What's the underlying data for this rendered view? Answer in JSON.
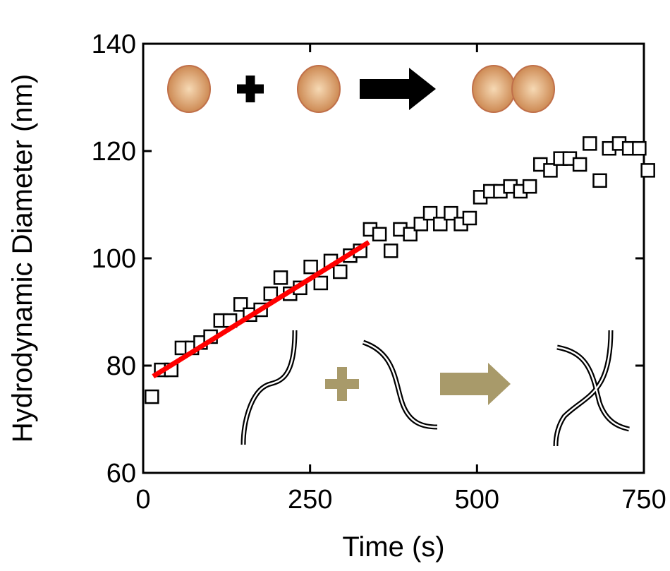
{
  "chart_data": {
    "type": "scatter",
    "x_label": "Time (s)",
    "y_label": "Hydrodynamic Diameter (nm)",
    "xlim": [
      0,
      750
    ],
    "ylim": [
      60,
      140
    ],
    "xticks": [
      0,
      250,
      500,
      750
    ],
    "yticks": [
      60,
      80,
      100,
      120,
      140
    ],
    "series": [
      {
        "color": "#000000",
        "marker": "square",
        "x": [
          13,
          27,
          42,
          58,
          73,
          86,
          101,
          116,
          130,
          146,
          160,
          176,
          191,
          206,
          220,
          235,
          251,
          266,
          281,
          295,
          310,
          325,
          340,
          354,
          371,
          385,
          400,
          416,
          430,
          445,
          461,
          476,
          489,
          505,
          520,
          535,
          550,
          565,
          579,
          595,
          610,
          625,
          639,
          654,
          669,
          684,
          698,
          713,
          728,
          743,
          756
        ],
        "values": [
          74.2,
          79.2,
          79.2,
          83.3,
          83.3,
          84.3,
          85.4,
          88.4,
          88.4,
          91.4,
          89.5,
          90.4,
          93.4,
          96.4,
          93.4,
          94.5,
          98.4,
          95.4,
          99.5,
          97.5,
          100.5,
          101.4,
          105.4,
          104.5,
          101.4,
          105.4,
          104.5,
          106.4,
          108.4,
          106.4,
          108.4,
          106.4,
          107.5,
          111.4,
          112.5,
          112.5,
          113.4,
          112.5,
          113.4,
          117.5,
          116.4,
          118.6,
          118.6,
          117.5,
          121.4,
          114.5,
          120.5,
          121.4,
          120.5,
          120.5,
          116.4
        ]
      },
      {
        "color": "#ff0000",
        "marker": "line",
        "x": [
          15,
          338
        ],
        "values": [
          78,
          103
        ]
      }
    ]
  }
}
